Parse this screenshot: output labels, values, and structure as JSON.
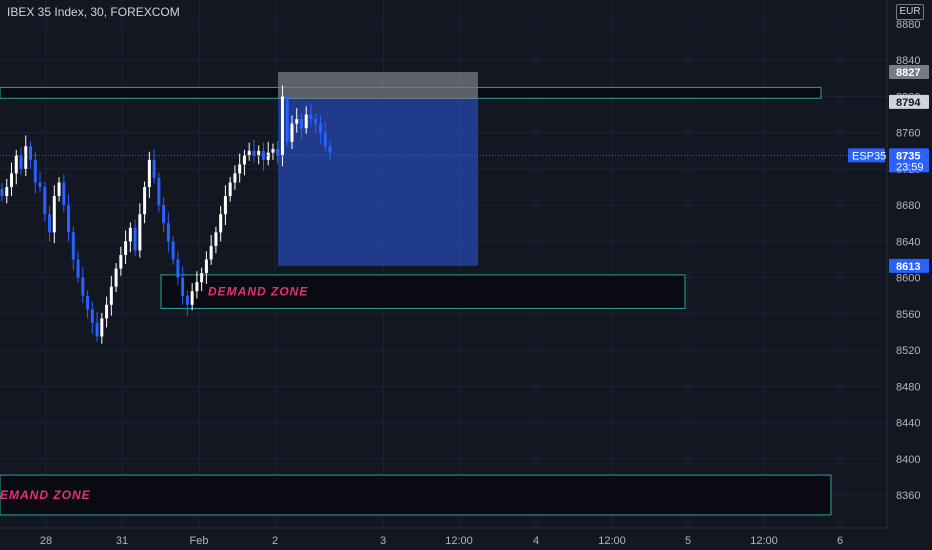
{
  "header": {
    "title": "IBEX 35 Index, 30, FOREXCOM",
    "currency": "EUR"
  },
  "colors": {
    "background": "#131722",
    "up_candle": "#ffffff",
    "down_candle": "#2962ff",
    "zone_border": "#26a69a",
    "zone_fill": "#0a0a12",
    "zone_label": "#e5336f",
    "stop_fill": "#787b86",
    "target_fill": "#2445a8"
  },
  "chart_data": {
    "type": "candlestick",
    "y_ticks": [
      "8880",
      "8840",
      "8800",
      "8760",
      "8720",
      "8680",
      "8640",
      "8600",
      "8560",
      "8520",
      "8480",
      "8440",
      "8400",
      "8360"
    ],
    "x_ticks": [
      "28",
      "31",
      "Feb",
      "2",
      "3",
      "12:00",
      "4",
      "12:00",
      "5",
      "12:00",
      "6"
    ],
    "ylim": [
      8328,
      8892
    ],
    "price_tags": [
      {
        "label": "8827",
        "value": 8827,
        "style": "gray"
      },
      {
        "label": "8794",
        "value": 8794,
        "style": "light"
      },
      {
        "label": "8735",
        "value": 8735,
        "style": "blue",
        "sub": "23:59"
      },
      {
        "label": "8613",
        "value": 8613,
        "style": "blue"
      }
    ],
    "symbol_tag": "ESP35",
    "last_price": 8735,
    "zones": [
      {
        "label": "",
        "top": 8810,
        "bottom": 8798
      },
      {
        "label": "DEMAND ZONE",
        "top": 8603,
        "bottom": 8566
      },
      {
        "label": "EMAND ZONE",
        "top": 8382,
        "bottom": 8338
      }
    ],
    "position": {
      "entry": 8797,
      "stop": 8827,
      "target": 8613
    },
    "close_path": [
      8690,
      8700,
      8715,
      8735,
      8720,
      8745,
      8730,
      8705,
      8700,
      8670,
      8650,
      8690,
      8705,
      8680,
      8650,
      8620,
      8600,
      8580,
      8565,
      8550,
      8535,
      8555,
      8570,
      8590,
      8610,
      8625,
      8640,
      8655,
      8630,
      8670,
      8700,
      8730,
      8710,
      8680,
      8660,
      8640,
      8620,
      8600,
      8580,
      8570,
      8585,
      8595,
      8605,
      8620,
      8635,
      8650,
      8670,
      8690,
      8705,
      8715,
      8725,
      8735,
      8740,
      8735,
      8740,
      8730,
      8738,
      8742,
      8735,
      8800,
      8750,
      8770,
      8775,
      8765,
      8780,
      8775,
      8770,
      8760,
      8745,
      8738
    ]
  }
}
